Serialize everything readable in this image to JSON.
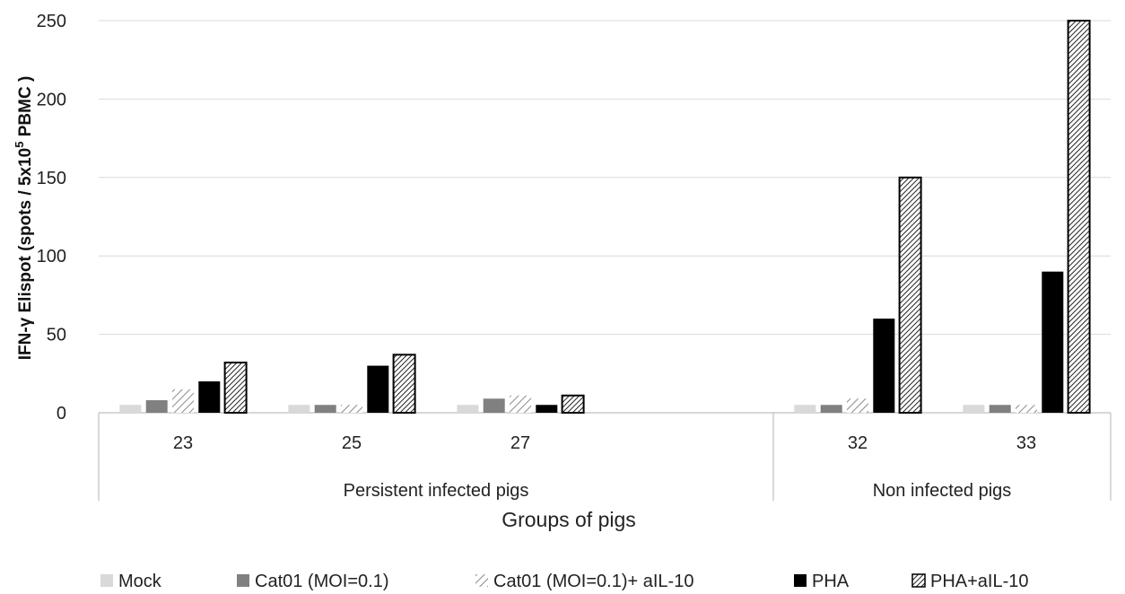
{
  "chart_data": {
    "type": "bar",
    "ylabel_main": "IFN-γ Elispot  (spots / 5x10",
    "ylabel_sup": "5",
    "ylabel_tail": " PBMC )",
    "xlabel": "Groups of pigs",
    "ylim": [
      0,
      250
    ],
    "yticks": [
      0,
      50,
      100,
      150,
      200,
      250
    ],
    "grid": true,
    "legend_position": "bottom",
    "groups": [
      {
        "label": "Persistent infected pigs",
        "categories": [
          "23",
          "25",
          "27",
          ""
        ]
      },
      {
        "label": "Non infected pigs",
        "categories": [
          "32",
          "33"
        ]
      }
    ],
    "categories": [
      "23",
      "25",
      "27",
      "",
      "32",
      "33"
    ],
    "series": [
      {
        "name": "Mock",
        "values": [
          5,
          5,
          5,
          null,
          5,
          5
        ],
        "style": "light"
      },
      {
        "name": "Cat01 (MOI=0.1)",
        "values": [
          8,
          5,
          9,
          null,
          5,
          5
        ],
        "style": "gray"
      },
      {
        "name": "Cat01 (MOI=0.1)+ aIL-10",
        "values": [
          15,
          5,
          11,
          null,
          9,
          5
        ],
        "style": "sparse-hatch"
      },
      {
        "name": "PHA",
        "values": [
          20,
          30,
          5,
          null,
          60,
          90
        ],
        "style": "black"
      },
      {
        "name": "PHA+aIL-10",
        "values": [
          32,
          37,
          11,
          null,
          150,
          250
        ],
        "style": "dense-hatch"
      }
    ],
    "colors": {
      "light": "#d9d9d9",
      "gray": "#808080",
      "black": "#000000",
      "grid": "#d9d9d9",
      "axis": "#bfbfbf"
    }
  }
}
